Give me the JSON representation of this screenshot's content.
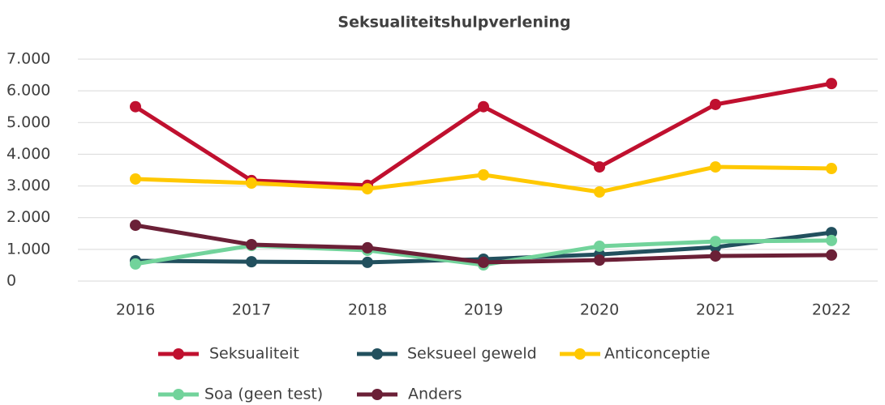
{
  "chart_data": {
    "type": "line",
    "title": "Seksualiteitshulpverlening",
    "categories": [
      "2016",
      "2017",
      "2018",
      "2019",
      "2020",
      "2021",
      "2022"
    ],
    "series": [
      {
        "name": "Seksualiteit",
        "color": "#c0102f",
        "values": [
          5500,
          3170,
          3020,
          5500,
          3600,
          5570,
          6230
        ]
      },
      {
        "name": "Seksueel geweld",
        "color": "#22505e",
        "values": [
          640,
          610,
          590,
          690,
          840,
          1070,
          1530
        ]
      },
      {
        "name": "Anticonceptie",
        "color": "#ffc800",
        "values": [
          3220,
          3090,
          2910,
          3350,
          2810,
          3600,
          3550
        ]
      },
      {
        "name": "Soa (geen test)",
        "color": "#72d39b",
        "values": [
          540,
          1120,
          970,
          510,
          1100,
          1250,
          1280
        ]
      },
      {
        "name": "Anders",
        "color": "#6b2037",
        "values": [
          1760,
          1150,
          1050,
          590,
          660,
          790,
          820
        ]
      }
    ],
    "ylim": [
      0,
      7000
    ],
    "yticks": [
      0,
      {
        "value": 1000,
        "label": "1.000"
      },
      {
        "value": 2000,
        "label": "2.000"
      },
      {
        "value": 3000,
        "label": "3.000"
      },
      {
        "value": 4000,
        "label": "4.000"
      },
      {
        "value": 5000,
        "label": "5.000"
      },
      {
        "value": 6000,
        "label": "6.000"
      },
      {
        "value": 7000,
        "label": "7.000"
      }
    ],
    "grid": true
  }
}
